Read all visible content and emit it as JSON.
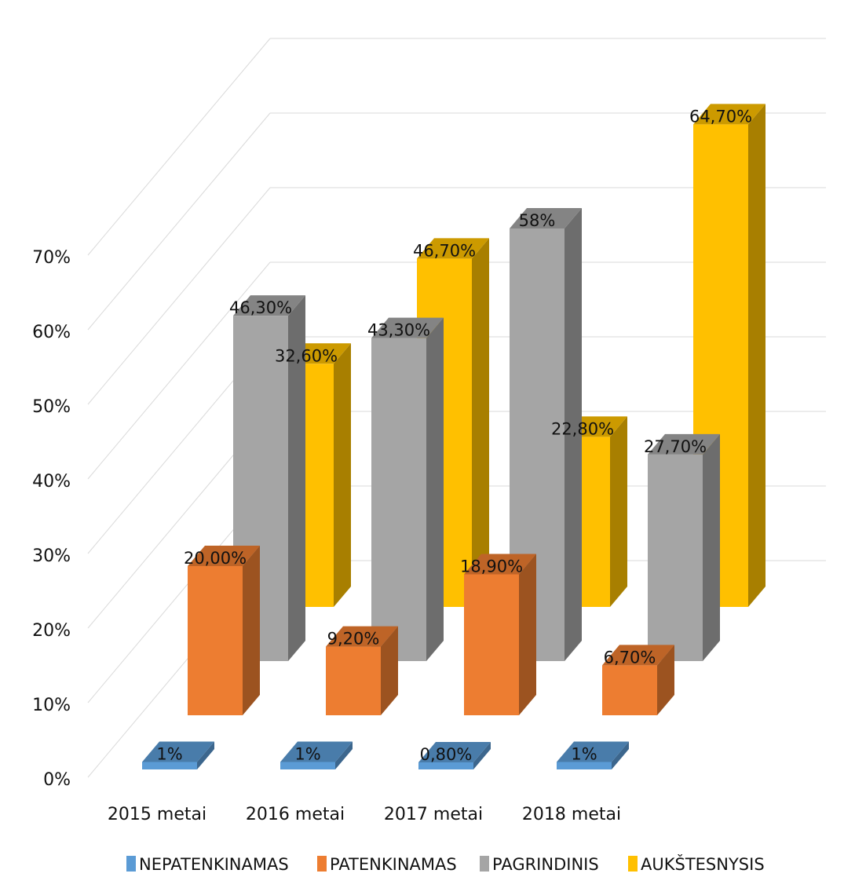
{
  "chart_data": {
    "type": "bar",
    "subtype": "3d-clustered-column",
    "categories": [
      "2015 metai",
      "2016 metai",
      "2017 metai",
      "2018 metai"
    ],
    "y_ticks": [
      "0%",
      "10%",
      "20%",
      "30%",
      "40%",
      "50%",
      "60%",
      "70%"
    ],
    "ylim": [
      0,
      70
    ],
    "grid": true,
    "legend_position": "bottom",
    "series": [
      {
        "name": "NEPATENKINAMAS",
        "color": "#5B9BD5",
        "values": [
          1,
          1,
          0.8,
          1
        ],
        "labels": [
          "1%",
          "1%",
          "0,80%",
          "1%"
        ]
      },
      {
        "name": "PATENKINAMAS",
        "color": "#ED7D31",
        "values": [
          20.0,
          9.2,
          18.9,
          6.7
        ],
        "labels": [
          "20,00%",
          "9,20%",
          "18,90%",
          "6,70%"
        ]
      },
      {
        "name": "PAGRINDINIS",
        "color": "#A5A5A5",
        "values": [
          46.3,
          43.3,
          58,
          27.7
        ],
        "labels": [
          "46,30%",
          "43,30%",
          "58%",
          "27,70%"
        ]
      },
      {
        "name": "AUKŠTESNYSIS",
        "color": "#FFC000",
        "values": [
          32.6,
          46.7,
          22.8,
          64.7
        ],
        "labels": [
          "32,60%",
          "46,70%",
          "22,80%",
          "64,70%"
        ]
      }
    ]
  }
}
